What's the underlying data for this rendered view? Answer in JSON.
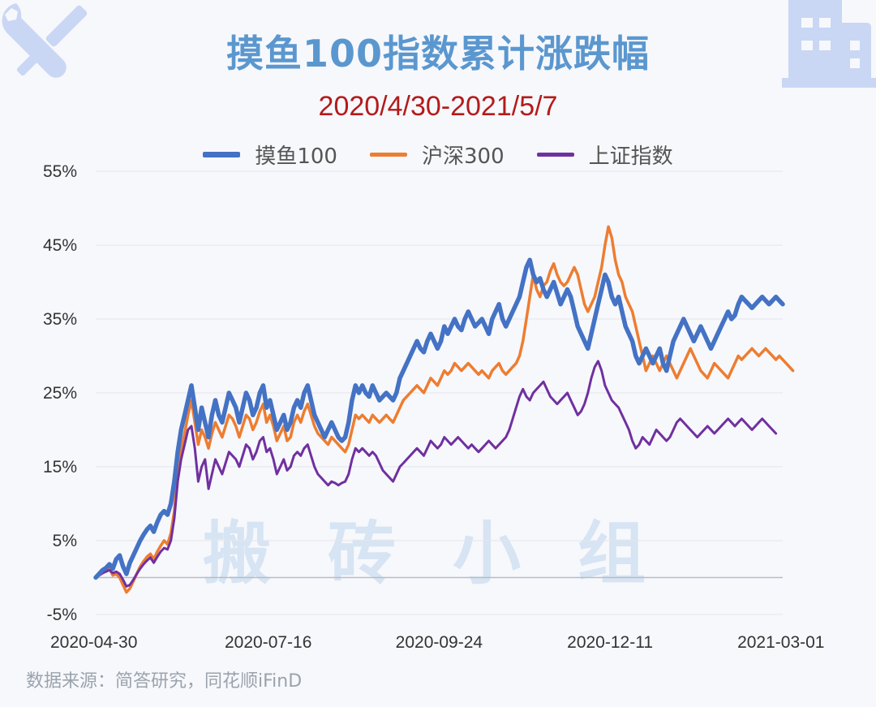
{
  "header": {
    "title": "摸鱼100指数累计涨跌幅",
    "subtitle": "2020/4/30-2021/5/7"
  },
  "watermark": "搬砖小组",
  "source": "数据来源：简答研究，同花顺iFinD",
  "icons": [
    "tools-icon",
    "building-icon"
  ],
  "colors": {
    "title": "#5b97cf",
    "subtitle": "#b31b1b",
    "moyu100": "#4472c4",
    "hs300": "#ed7d31",
    "sse": "#7030a0"
  },
  "chart_data": {
    "type": "line",
    "title": "摸鱼100指数累计涨跌幅",
    "subtitle": "2020/4/30-2021/5/7",
    "x_ticks": [
      "2020-04-30",
      "2020-07-16",
      "2020-09-24",
      "2020-12-11",
      "2021-03-01"
    ],
    "x_tick_index": [
      0,
      50,
      100,
      150,
      200
    ],
    "y_ticks": [
      "55%",
      "45%",
      "35%",
      "25%",
      "15%",
      "5%",
      "-5%"
    ],
    "y_tick_values": [
      55,
      45,
      35,
      25,
      15,
      5,
      -5
    ],
    "ylim": [
      -5,
      55
    ],
    "legend_position": "top",
    "grid": true,
    "series": [
      {
        "name": "摸鱼100",
        "color": "#4472c4",
        "values": [
          0,
          0.5,
          1,
          1.3,
          1.8,
          1.2,
          2.5,
          3,
          1.5,
          0.5,
          2,
          3,
          4,
          5,
          5.8,
          6.5,
          7,
          6.2,
          7.5,
          8.5,
          9,
          8.5,
          10,
          13,
          17,
          20,
          22,
          24,
          26,
          23,
          20,
          23,
          21,
          19,
          22,
          24,
          22,
          21,
          23,
          25,
          24,
          23,
          21,
          23,
          25,
          24,
          22,
          23,
          25,
          26,
          23,
          24,
          22,
          20,
          21,
          22,
          20,
          21,
          23,
          24,
          23,
          25,
          26,
          24,
          22,
          21,
          20,
          19,
          20,
          21,
          20,
          19,
          18.5,
          19,
          21,
          24,
          26,
          25,
          26,
          25,
          24.5,
          26,
          25,
          24,
          24.5,
          25,
          24.5,
          24,
          25,
          27,
          28,
          29,
          30,
          31,
          32,
          31,
          30.5,
          32,
          33,
          32,
          31,
          32,
          34,
          33,
          34,
          35,
          34,
          33.5,
          35,
          36,
          35,
          34,
          34.5,
          35,
          34,
          33,
          35,
          36,
          37,
          35,
          34,
          35,
          36,
          37,
          38,
          40,
          42,
          43,
          41,
          40,
          40.5,
          39,
          38,
          39,
          40,
          38.5,
          37,
          38,
          39,
          38,
          36,
          34,
          33,
          32,
          31,
          33,
          35,
          37,
          39,
          41,
          40,
          38,
          37,
          38,
          36,
          34,
          33,
          32,
          30,
          29,
          30,
          31,
          30,
          29,
          30,
          31,
          29,
          28,
          30,
          32,
          33,
          34,
          35,
          34,
          33,
          32,
          33,
          34,
          33,
          32,
          31,
          32,
          33,
          34,
          35,
          36,
          35,
          35.5,
          37,
          38,
          37.5,
          37,
          36.5,
          37,
          37.5,
          38,
          37.5,
          37,
          37.5,
          38,
          37.5,
          37
        ]
      },
      {
        "name": "沪深300",
        "color": "#ed7d31",
        "values": [
          0,
          0.3,
          0.6,
          0.9,
          1.2,
          0.3,
          0.5,
          0,
          -1,
          -2,
          -1.5,
          -0.5,
          0.5,
          1.5,
          2.2,
          2.8,
          3.2,
          2.5,
          3.5,
          4.3,
          5,
          4.5,
          6,
          9,
          14,
          17,
          19.5,
          22,
          24,
          21,
          18,
          20,
          19,
          17.5,
          19.5,
          21,
          20,
          19,
          20.5,
          22,
          21.5,
          20.5,
          19,
          20.5,
          22,
          21.5,
          20,
          21,
          22.5,
          23.5,
          21,
          22,
          20.5,
          18.5,
          19.5,
          20.5,
          18.5,
          19,
          21,
          22,
          21,
          22.5,
          23.5,
          22,
          20.5,
          19.5,
          19,
          18.5,
          18,
          19,
          18.5,
          18,
          17.5,
          17,
          18,
          20,
          22,
          21.5,
          22,
          21.5,
          21,
          22,
          21.5,
          21,
          21.5,
          22,
          21.5,
          21,
          22,
          23,
          24,
          24.5,
          25,
          25.5,
          26,
          25.5,
          25,
          26,
          27,
          26.5,
          26,
          27,
          28,
          27.5,
          28,
          29,
          28.5,
          28,
          28.5,
          29,
          28.5,
          28,
          27.5,
          28,
          27.5,
          27,
          28,
          28.5,
          29,
          28,
          27.5,
          28,
          28.5,
          29,
          30,
          32,
          35,
          38,
          41,
          39,
          38,
          39.5,
          40,
          41.5,
          42.5,
          41,
          40,
          39.5,
          40,
          41,
          42,
          41,
          39,
          37,
          36,
          37,
          38,
          40,
          42,
          45,
          47.5,
          46,
          43,
          41,
          40,
          38,
          37,
          36,
          34,
          32,
          30,
          28,
          29,
          30,
          29,
          28,
          29,
          30,
          29,
          28,
          27,
          28,
          29,
          30,
          31,
          30,
          29,
          28,
          27.5,
          27,
          28,
          29,
          28.5,
          28,
          27.5,
          27,
          28,
          29,
          30,
          29.5,
          30,
          30.5,
          31,
          30.5,
          30,
          30.5,
          31,
          30.5,
          30,
          29.5,
          30,
          29.5,
          29,
          28.5,
          28
        ]
      },
      {
        "name": "上证指数",
        "color": "#7030a0",
        "values": [
          0,
          0.3,
          0.6,
          0.8,
          1,
          0.6,
          0.8,
          0.5,
          -0.3,
          -1.2,
          -1,
          -0.3,
          0.5,
          1.2,
          1.8,
          2.3,
          2.7,
          2,
          2.8,
          3.5,
          4,
          3.8,
          5,
          8,
          13,
          16,
          18,
          20,
          20.5,
          17.5,
          13,
          15,
          16,
          12,
          14,
          16,
          15,
          14,
          15.5,
          17,
          16.5,
          16,
          15,
          16.5,
          18,
          17.5,
          16,
          17,
          18.5,
          19,
          17,
          17.5,
          16,
          14,
          15,
          16,
          14.5,
          15,
          16.5,
          17,
          16.5,
          17.5,
          18,
          16.5,
          15,
          14,
          13.5,
          13,
          12.5,
          13,
          12.8,
          12.5,
          12.8,
          13,
          14,
          16,
          17.5,
          17,
          17.5,
          17,
          16.5,
          17,
          16.5,
          15.5,
          14.5,
          14,
          13.5,
          13,
          14,
          15,
          15.5,
          16,
          16.5,
          17,
          17.5,
          17,
          16.5,
          17.5,
          18.5,
          18,
          17.5,
          18,
          19,
          18.5,
          18,
          18.5,
          19,
          18.5,
          18,
          17.5,
          18,
          17.5,
          17,
          17.5,
          18,
          18.5,
          18,
          17.5,
          18,
          18.5,
          19,
          20,
          21.5,
          23,
          24.5,
          25.5,
          24.5,
          24,
          25,
          25.5,
          26,
          26.5,
          25.5,
          24.5,
          24,
          23.5,
          24,
          24.5,
          25,
          24,
          23,
          22,
          22.5,
          23.5,
          25,
          27,
          28.5,
          29.3,
          28,
          26,
          25,
          24,
          23.5,
          23,
          22,
          21,
          20,
          18.5,
          17.5,
          18,
          19,
          18.5,
          18,
          19,
          20,
          19.5,
          19,
          18.5,
          19,
          20,
          21,
          21.5,
          21,
          20.5,
          20,
          19.5,
          19,
          19.5,
          20,
          20.5,
          20,
          19.5,
          20,
          20.5,
          21,
          21.5,
          21,
          20.5,
          21,
          21.5,
          21,
          20.5,
          20,
          20.5,
          21,
          21.5,
          21,
          20.5,
          20,
          19.5
        ]
      }
    ]
  }
}
